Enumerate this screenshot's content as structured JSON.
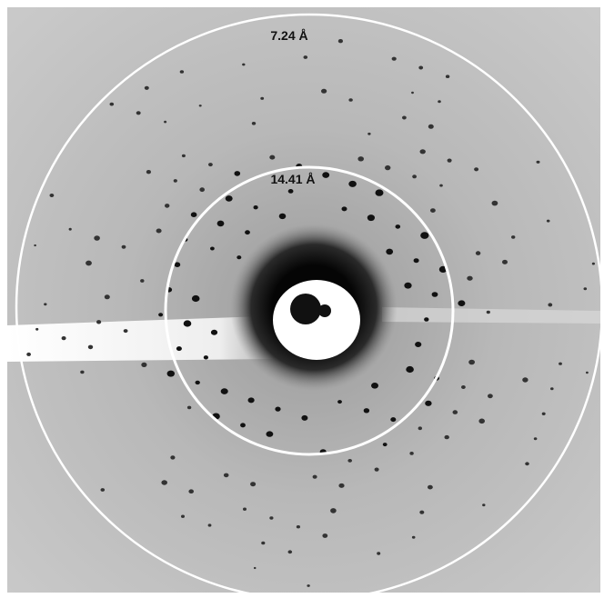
{
  "rings": [
    {
      "label": "7.24 Å"
    },
    {
      "label": "14.41 Å"
    }
  ]
}
